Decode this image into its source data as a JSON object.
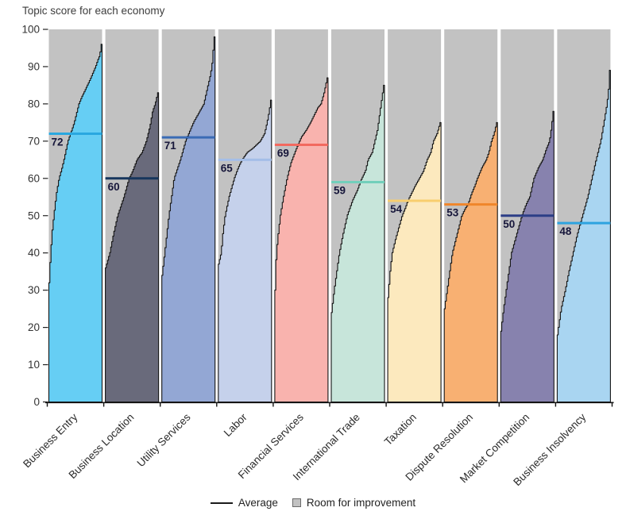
{
  "title": "Topic score for each economy",
  "legend": {
    "average_label": "Average",
    "room_label": "Room for improvement",
    "room_color": "#c2c2c2",
    "average_line_color": "#1a1a1a"
  },
  "axis": {
    "y_min": 0,
    "y_max": 100,
    "y_ticks": [
      0,
      10,
      20,
      30,
      40,
      50,
      60,
      70,
      80,
      90,
      100
    ]
  },
  "chart_data": {
    "type": "area",
    "title": "Topic score for each economy",
    "ylabel": "",
    "xlabel": "",
    "ylim": [
      0,
      100
    ],
    "grid": false,
    "legend_position": "bottom",
    "background_fill": "#c2c2c2",
    "curve_stroke": "#141414",
    "number_label_color": "#16163a",
    "topics": [
      {
        "label": "Business Entry",
        "average": 72,
        "min": 32,
        "max": 96,
        "fill": "#66cef4",
        "avg_line_color": "#29a8e0",
        "curve": [
          [
            0,
            32
          ],
          [
            0.03,
            40
          ],
          [
            0.06,
            46
          ],
          [
            0.09,
            50
          ],
          [
            0.14,
            56
          ],
          [
            0.19,
            60
          ],
          [
            0.25,
            63
          ],
          [
            0.3,
            66
          ],
          [
            0.36,
            70
          ],
          [
            0.41,
            72
          ],
          [
            0.46,
            74
          ],
          [
            0.5,
            76
          ],
          [
            0.57,
            80
          ],
          [
            0.63,
            82
          ],
          [
            0.7,
            84
          ],
          [
            0.8,
            87
          ],
          [
            0.89,
            90
          ],
          [
            0.94,
            92
          ],
          [
            0.97,
            93
          ],
          [
            1,
            96
          ]
        ]
      },
      {
        "label": "Business Location",
        "average": 60,
        "min": 36,
        "max": 83,
        "fill": "#696a7b",
        "avg_line_color": "#17365d",
        "curve": [
          [
            0,
            36
          ],
          [
            0.08,
            40
          ],
          [
            0.15,
            45
          ],
          [
            0.23,
            50
          ],
          [
            0.35,
            55
          ],
          [
            0.45,
            60
          ],
          [
            0.52,
            62
          ],
          [
            0.6,
            65
          ],
          [
            0.7,
            67
          ],
          [
            0.78,
            70
          ],
          [
            0.85,
            74
          ],
          [
            0.9,
            78
          ],
          [
            0.95,
            80
          ],
          [
            1,
            83
          ]
        ]
      },
      {
        "label": "Utility Services",
        "average": 71,
        "min": 34,
        "max": 98,
        "fill": "#93a7d4",
        "avg_line_color": "#3a6bb5",
        "curve": [
          [
            0,
            34
          ],
          [
            0.05,
            40
          ],
          [
            0.09,
            45
          ],
          [
            0.13,
            50
          ],
          [
            0.18,
            55
          ],
          [
            0.23,
            60
          ],
          [
            0.35,
            65
          ],
          [
            0.45,
            70
          ],
          [
            0.48,
            71
          ],
          [
            0.6,
            75
          ],
          [
            0.72,
            78
          ],
          [
            0.8,
            80
          ],
          [
            0.88,
            85
          ],
          [
            0.93,
            88
          ],
          [
            0.96,
            91
          ],
          [
            1,
            98
          ]
        ]
      },
      {
        "label": "Labor",
        "average": 65,
        "min": 37,
        "max": 81,
        "fill": "#c5d1eb",
        "avg_line_color": "#a4bee8",
        "curve": [
          [
            0,
            37
          ],
          [
            0.05,
            40
          ],
          [
            0.08,
            45
          ],
          [
            0.125,
            50
          ],
          [
            0.2,
            55
          ],
          [
            0.3,
            60
          ],
          [
            0.38,
            63
          ],
          [
            0.45,
            65
          ],
          [
            0.55,
            67
          ],
          [
            0.65,
            68
          ],
          [
            0.8,
            70
          ],
          [
            0.88,
            72
          ],
          [
            0.93,
            75
          ],
          [
            0.97,
            78
          ],
          [
            1,
            81
          ]
        ]
      },
      {
        "label": "Financial Services",
        "average": 69,
        "min": 30,
        "max": 87,
        "fill": "#f9b3ae",
        "avg_line_color": "#f2695f",
        "curve": [
          [
            0,
            30
          ],
          [
            0.025,
            40
          ],
          [
            0.06,
            45
          ],
          [
            0.1,
            50
          ],
          [
            0.16,
            55
          ],
          [
            0.23,
            60
          ],
          [
            0.3,
            64
          ],
          [
            0.38,
            67
          ],
          [
            0.44,
            69
          ],
          [
            0.5,
            71
          ],
          [
            0.6,
            73
          ],
          [
            0.68,
            75
          ],
          [
            0.75,
            77
          ],
          [
            0.82,
            79
          ],
          [
            0.88,
            80
          ],
          [
            0.94,
            83
          ],
          [
            1,
            87
          ]
        ]
      },
      {
        "label": "International Trade",
        "average": 59,
        "min": 24,
        "max": 85,
        "fill": "#c7e5da",
        "avg_line_color": "#72cfbb",
        "curve": [
          [
            0,
            24
          ],
          [
            0.05,
            30
          ],
          [
            0.1,
            35
          ],
          [
            0.15,
            40
          ],
          [
            0.22,
            45
          ],
          [
            0.3,
            50
          ],
          [
            0.4,
            54
          ],
          [
            0.5,
            57
          ],
          [
            0.55,
            59
          ],
          [
            0.58,
            60
          ],
          [
            0.65,
            62
          ],
          [
            0.7,
            65
          ],
          [
            0.78,
            67
          ],
          [
            0.83,
            70
          ],
          [
            0.88,
            73
          ],
          [
            0.9,
            75
          ],
          [
            0.95,
            80
          ],
          [
            1,
            85
          ]
        ]
      },
      {
        "label": "Taxation",
        "average": 54,
        "min": 28,
        "max": 75,
        "fill": "#fce9be",
        "avg_line_color": "#f8ce6e",
        "curve": [
          [
            0,
            28
          ],
          [
            0.04,
            35
          ],
          [
            0.08,
            40
          ],
          [
            0.15,
            44
          ],
          [
            0.21,
            47
          ],
          [
            0.27,
            50
          ],
          [
            0.33,
            52
          ],
          [
            0.38,
            54
          ],
          [
            0.45,
            56
          ],
          [
            0.52,
            58
          ],
          [
            0.6,
            60
          ],
          [
            0.68,
            62
          ],
          [
            0.75,
            65
          ],
          [
            0.82,
            67
          ],
          [
            0.87,
            70
          ],
          [
            0.94,
            72
          ],
          [
            1,
            75
          ]
        ]
      },
      {
        "label": "Dispute Resolution",
        "average": 53,
        "min": 25,
        "max": 75,
        "fill": "#f8b072",
        "avg_line_color": "#f0862b",
        "curve": [
          [
            0,
            25
          ],
          [
            0.05,
            30
          ],
          [
            0.1,
            35
          ],
          [
            0.15,
            40
          ],
          [
            0.24,
            45
          ],
          [
            0.33,
            50
          ],
          [
            0.4,
            52
          ],
          [
            0.45,
            53
          ],
          [
            0.52,
            56
          ],
          [
            0.58,
            58
          ],
          [
            0.63,
            60
          ],
          [
            0.72,
            63
          ],
          [
            0.8,
            65
          ],
          [
            0.85,
            67
          ],
          [
            0.9,
            70
          ],
          [
            0.95,
            72
          ],
          [
            1,
            75
          ]
        ]
      },
      {
        "label": "Market Competition",
        "average": 50,
        "min": 19,
        "max": 78,
        "fill": "#8782ae",
        "avg_line_color": "#2c3e87",
        "curve": [
          [
            0,
            19
          ],
          [
            0.05,
            25
          ],
          [
            0.1,
            30
          ],
          [
            0.15,
            35
          ],
          [
            0.2,
            40
          ],
          [
            0.28,
            44
          ],
          [
            0.34,
            47
          ],
          [
            0.4,
            50
          ],
          [
            0.48,
            53
          ],
          [
            0.55,
            55
          ],
          [
            0.63,
            60
          ],
          [
            0.72,
            63
          ],
          [
            0.8,
            65
          ],
          [
            0.87,
            68
          ],
          [
            0.93,
            70
          ],
          [
            0.97,
            74
          ],
          [
            1,
            78
          ]
        ]
      },
      {
        "label": "Business Insolvency",
        "average": 48,
        "min": 18,
        "max": 89,
        "fill": "#a9d5f1",
        "avg_line_color": "#2ea3df",
        "curve": [
          [
            0,
            18
          ],
          [
            0.07,
            25
          ],
          [
            0.15,
            30
          ],
          [
            0.22,
            35
          ],
          [
            0.3,
            40
          ],
          [
            0.38,
            45
          ],
          [
            0.44,
            48
          ],
          [
            0.5,
            51
          ],
          [
            0.58,
            55
          ],
          [
            0.66,
            60
          ],
          [
            0.74,
            65
          ],
          [
            0.83,
            70
          ],
          [
            0.89,
            75
          ],
          [
            0.95,
            80
          ],
          [
            0.98,
            84
          ],
          [
            1,
            89
          ]
        ]
      }
    ]
  }
}
